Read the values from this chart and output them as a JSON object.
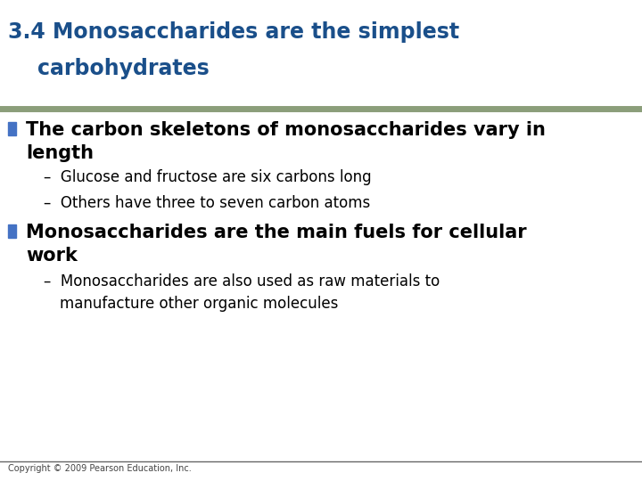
{
  "title_line1": "3.4 Monosaccharides are the simplest",
  "title_line2": "    carbohydrates",
  "title_color": "#1A4F8A",
  "title_fontsize": 17,
  "separator_color": "#8B9E7A",
  "bg_color": "#FFFFFF",
  "bullet_square_color": "#4472C4",
  "bullet1_line1": "The carbon skeletons of monosaccharides vary in",
  "bullet1_line2": "length",
  "bullet1_fontsize": 15,
  "sub1_1": "Glucose and fructose are six carbons long",
  "sub1_2": "Others have three to seven carbon atoms",
  "sub_fontsize": 12,
  "bullet2_line1": "Monosaccharides are the main fuels for cellular",
  "bullet2_line2": "work",
  "bullet2_fontsize": 15,
  "sub2_1_line1": "Monosaccharides are also used as raw materials to",
  "sub2_1_line2": "manufacture other organic molecules",
  "copyright": "Copyright © 2009 Pearson Education, Inc.",
  "copyright_fontsize": 7,
  "footer_line_color": "#666666"
}
